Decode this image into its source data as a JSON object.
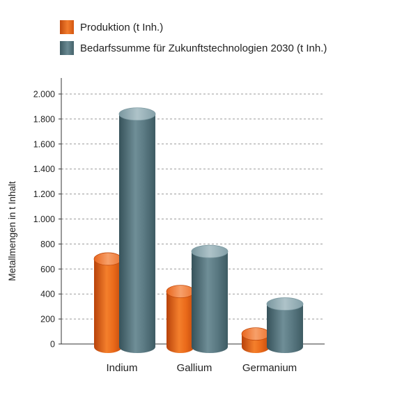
{
  "chart_data": {
    "type": "bar",
    "title": "",
    "xlabel": "",
    "ylabel": "Metallmengen in t Inhalt",
    "ylim": [
      0,
      2000
    ],
    "yticks": [
      0,
      200,
      400,
      600,
      800,
      1000,
      1200,
      1400,
      1600,
      1800,
      2000
    ],
    "ytick_labels": [
      "0",
      "200",
      "400",
      "600",
      "800",
      "1.000",
      "1.200",
      "1.400",
      "1.600",
      "1.800",
      "2.000"
    ],
    "categories": [
      "Indium",
      "Gallium",
      "Germanium"
    ],
    "series": [
      {
        "name": "Produktion (t Inh.)",
        "values": [
          680,
          420,
          80
        ],
        "color": "#e8641b"
      },
      {
        "name": "Bedarfssumme für Zukunftstechnologien 2030 (t Inh.)",
        "values": [
          1840,
          740,
          320
        ],
        "color": "#4e6f78"
      }
    ],
    "grid": true,
    "legend_position": "top-left"
  }
}
